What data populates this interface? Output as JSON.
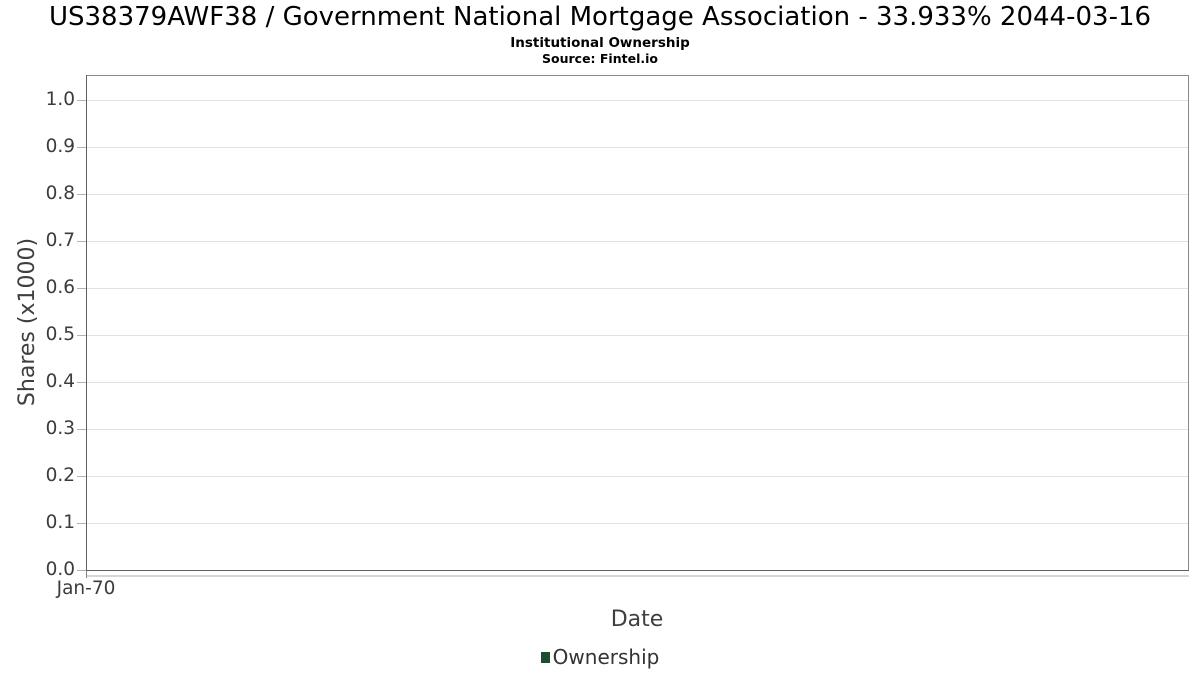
{
  "header": {
    "title": "US38379AWF38 / Government National Mortgage Association - 33.933% 2044-03-16",
    "subtitle": "Institutional Ownership",
    "source": "Source: Fintel.io"
  },
  "chart_data": {
    "type": "bar",
    "title": "US38379AWF38 / Government National Mortgage Association - 33.933% 2044-03-16",
    "subtitle": "Institutional Ownership",
    "source": "Source: Fintel.io",
    "xlabel": "Date",
    "ylabel": "Shares (x1000)",
    "x_ticks": [
      {
        "label": "Jan-70",
        "pos": 0
      }
    ],
    "y_ticks": [
      "0.0",
      "0.1",
      "0.2",
      "0.3",
      "0.4",
      "0.5",
      "0.6",
      "0.7",
      "0.8",
      "0.9",
      "1.0"
    ],
    "ylim": [
      0,
      1.05
    ],
    "grid": "horizontal",
    "legend_position": "bottom",
    "series": [
      {
        "name": "Ownership",
        "color": "#1e4c2e",
        "x": [],
        "values": []
      }
    ]
  }
}
